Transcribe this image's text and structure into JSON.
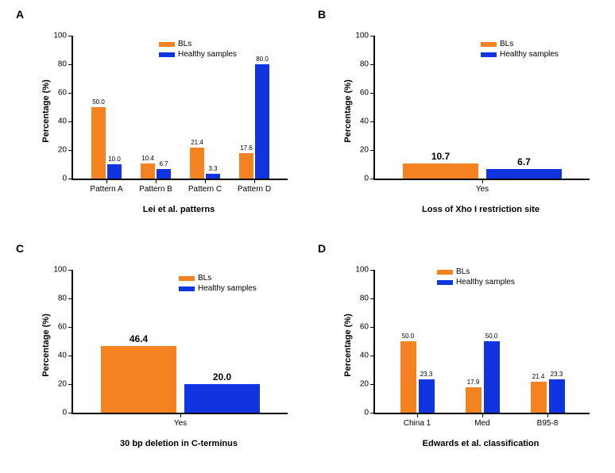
{
  "colors": {
    "bls": "#f58220",
    "healthy": "#1034e0",
    "axis": "#000000",
    "bg": "#ffffff",
    "text": "#000000"
  },
  "legend": {
    "bls": "BLs",
    "healthy": "Healthy samples"
  },
  "panels": {
    "A": {
      "label": "A",
      "ylabel": "Percentage (%)",
      "xlabel": "Lei et al. patterns",
      "ylim": [
        0,
        100
      ],
      "ystep": 20,
      "categories": [
        "Pattern A",
        "Pattern B",
        "Pattern C",
        "Pattern D"
      ],
      "series": [
        {
          "name": "BLs",
          "values": [
            50.0,
            10.4,
            21.4,
            17.6
          ],
          "labels": [
            "50.0",
            "10.4",
            "21.4",
            "17.6"
          ]
        },
        {
          "name": "Healthy",
          "values": [
            10.0,
            6.7,
            3.3,
            80.0
          ],
          "labels": [
            "10.0",
            "6.7",
            "3.3",
            "80.0"
          ]
        }
      ],
      "bar_label_size": "small"
    },
    "B": {
      "label": "B",
      "ylabel": "Percentage (%)",
      "xlabel": "Loss of Xho I restriction site",
      "ylim": [
        0,
        100
      ],
      "ystep": 20,
      "categories": [
        "Yes"
      ],
      "series": [
        {
          "name": "BLs",
          "values": [
            10.7
          ],
          "labels": [
            "10.7"
          ]
        },
        {
          "name": "Healthy",
          "values": [
            6.7
          ],
          "labels": [
            "6.7"
          ]
        }
      ],
      "bar_label_size": "big"
    },
    "C": {
      "label": "C",
      "ylabel": "Percentage (%)",
      "xlabel": "30 bp deletion in C-terminus",
      "ylim": [
        0,
        100
      ],
      "ystep": 20,
      "categories": [
        "Yes"
      ],
      "series": [
        {
          "name": "BLs",
          "values": [
            46.4
          ],
          "labels": [
            "46.4"
          ]
        },
        {
          "name": "Healthy",
          "values": [
            20.0
          ],
          "labels": [
            "20.0"
          ]
        }
      ],
      "bar_label_size": "big"
    },
    "D": {
      "label": "D",
      "ylabel": "Percentage (%)",
      "xlabel": "Edwards et al. classification",
      "ylim": [
        0,
        100
      ],
      "ystep": 20,
      "categories": [
        "China 1",
        "Med",
        "B95-8"
      ],
      "series": [
        {
          "name": "BLs",
          "values": [
            50.0,
            17.9,
            21.4
          ],
          "labels": [
            "50.0",
            "17.9",
            "21.4"
          ]
        },
        {
          "name": "Healthy",
          "values": [
            23.3,
            50.0,
            23.3
          ],
          "labels": [
            "23.3",
            "50.0",
            "23.3"
          ]
        }
      ],
      "bar_label_size": "small"
    }
  }
}
